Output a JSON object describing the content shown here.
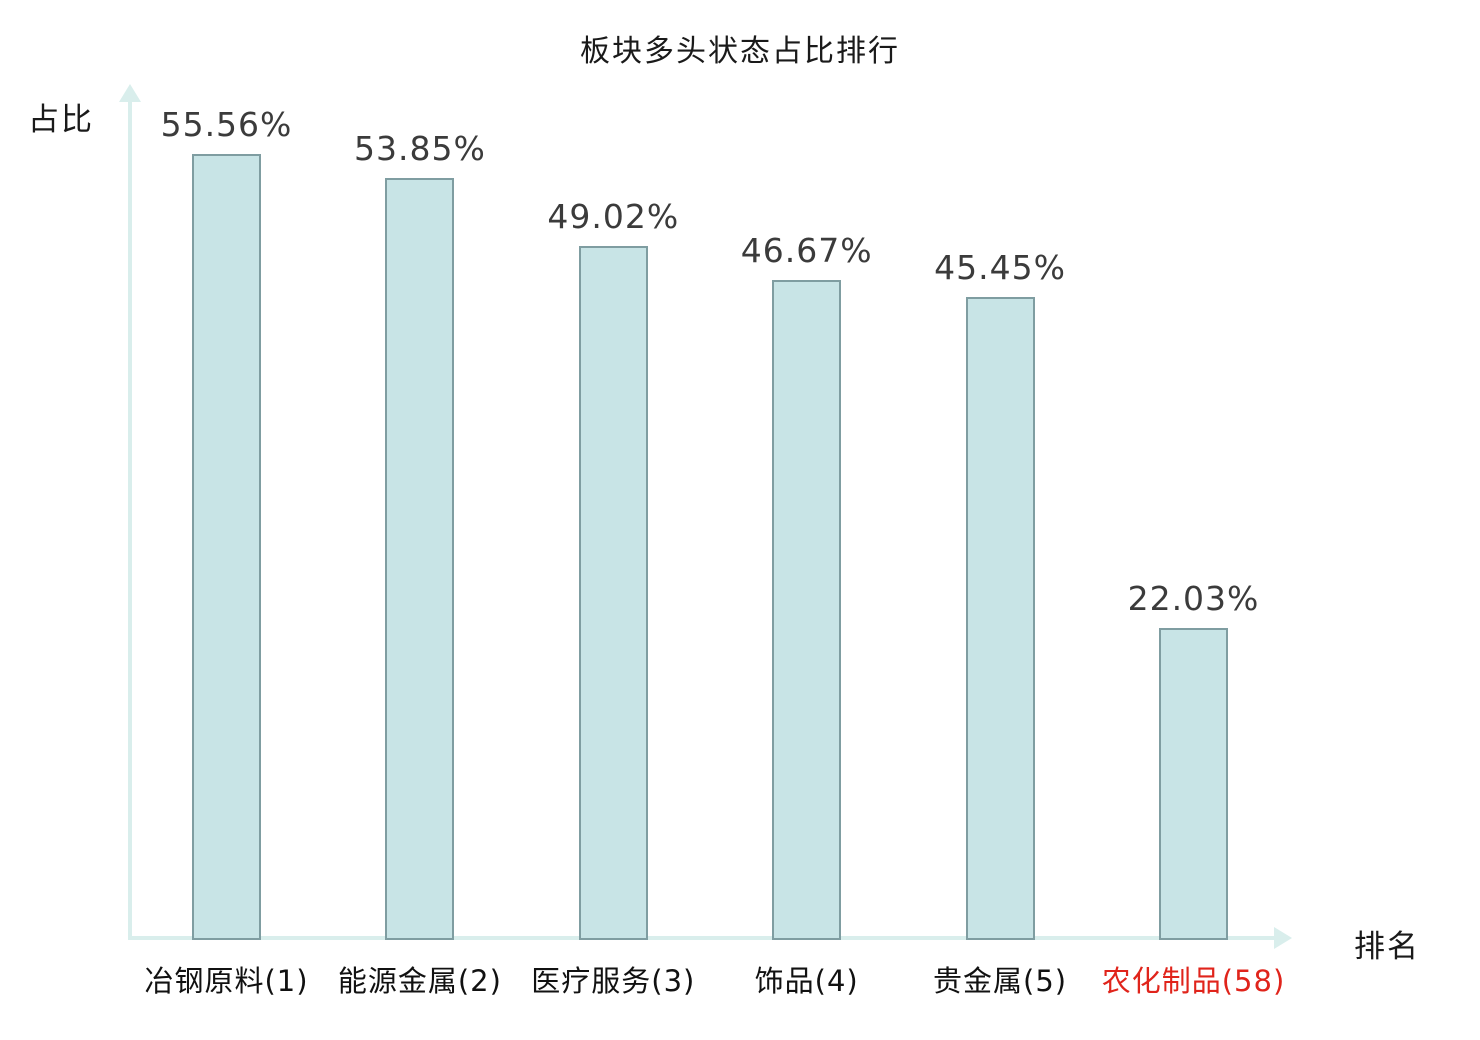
{
  "chart_data": {
    "type": "bar",
    "title": "板块多头状态占比排行",
    "xlabel": "排名",
    "ylabel": "占比",
    "categories": [
      "冶钢原料(1)",
      "能源金属(2)",
      "医疗服务(3)",
      "饰品(4)",
      "贵金属(5)",
      "农化制品(58)"
    ],
    "values": [
      55.56,
      53.85,
      49.02,
      46.67,
      45.45,
      22.03
    ],
    "value_labels": [
      "55.56%",
      "53.85%",
      "49.02%",
      "46.67%",
      "45.45%",
      "22.03%"
    ],
    "highlighted_category_index": 5,
    "ylim": [
      0,
      60
    ],
    "grid": false,
    "legend": false,
    "colors": {
      "bar_fill": "#c8e4e6",
      "bar_border": "#7f9da1",
      "axis": "#d9eeec",
      "value_label": "#3b3b3b",
      "category_label": "#111111",
      "highlight_label": "#e0241b",
      "background": "#ffffff"
    }
  }
}
